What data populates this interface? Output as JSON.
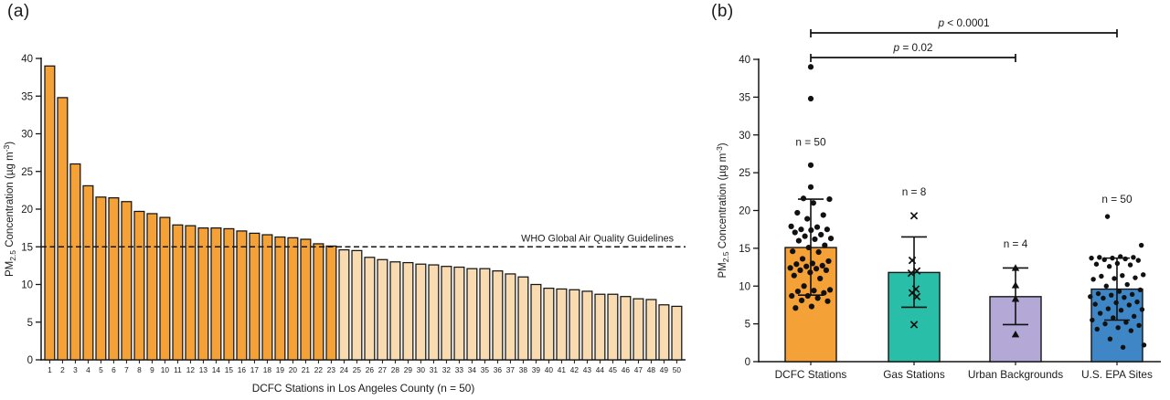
{
  "figure": {
    "panel_a_label": "(a)",
    "panel_b_label": "(b)"
  },
  "chart_data": [
    {
      "type": "bar",
      "panel": "a",
      "title": "",
      "xlabel": "DCFC Stations in Los Angeles County (n = 50)",
      "ylabel": "PM2.5 Concentration (µg m-3)",
      "ylabel_parts": {
        "pre": "PM",
        "sub": "2.5",
        "mid": " Concentration (µg m",
        "sup": "-3",
        "post": ")"
      },
      "ylim": [
        0,
        40
      ],
      "yticks": [
        0,
        5,
        10,
        15,
        20,
        25,
        30,
        35,
        40
      ],
      "grid": false,
      "categories": [
        "1",
        "2",
        "3",
        "4",
        "5",
        "6",
        "7",
        "8",
        "9",
        "10",
        "11",
        "12",
        "13",
        "14",
        "15",
        "16",
        "17",
        "18",
        "19",
        "20",
        "21",
        "22",
        "23",
        "24",
        "25",
        "26",
        "27",
        "28",
        "29",
        "30",
        "31",
        "32",
        "33",
        "34",
        "35",
        "36",
        "37",
        "38",
        "39",
        "40",
        "41",
        "42",
        "43",
        "44",
        "45",
        "46",
        "47",
        "48",
        "49",
        "50"
      ],
      "values": [
        39.0,
        34.8,
        26.0,
        23.1,
        21.6,
        21.5,
        21.0,
        19.7,
        19.4,
        18.9,
        17.9,
        17.8,
        17.5,
        17.5,
        17.4,
        17.1,
        16.8,
        16.6,
        16.3,
        16.2,
        16.0,
        15.4,
        15.1,
        14.6,
        14.5,
        13.6,
        13.3,
        13.0,
        12.9,
        12.7,
        12.6,
        12.4,
        12.3,
        12.1,
        12.1,
        11.8,
        11.4,
        11.0,
        10.0,
        9.5,
        9.4,
        9.3,
        9.1,
        8.7,
        8.7,
        8.4,
        8.1,
        8.0,
        7.3,
        7.1
      ],
      "reference_line": {
        "value": 15,
        "label": "WHO Global Air Quality Guidelines",
        "style": "dashed"
      },
      "threshold": 15,
      "colors": {
        "above": "#F4A137",
        "below": "#F8DBB1",
        "outline": "#151515",
        "axis": "#151515",
        "text": "#1a1a1a"
      }
    },
    {
      "type": "bar_scatter",
      "panel": "b",
      "title": "",
      "xlabel": "",
      "ylabel": "PM2.5 Concentration (µg m-3)",
      "ylabel_parts": {
        "pre": "PM",
        "sub": "2.5",
        "mid": " Concentration (µg m",
        "sup": "-3",
        "post": ")"
      },
      "ylim": [
        0,
        40
      ],
      "yticks": [
        0,
        5,
        10,
        15,
        20,
        25,
        30,
        35,
        40
      ],
      "grid": false,
      "categories": [
        "DCFC Stations",
        "Gas Stations",
        "Urban Backgrounds",
        "U.S. EPA Sites"
      ],
      "series": [
        {
          "name": "DCFC Stations",
          "n_label": "n = 50",
          "n_label_value_y": 28.6,
          "mean": 15.1,
          "err_low": 8.8,
          "err_high": 21.5,
          "color": "#F4A137",
          "marker": "circle",
          "points": [
            39.0,
            34.8,
            26.0,
            23.1,
            21.6,
            21.5,
            21.0,
            19.7,
            19.4,
            18.9,
            17.9,
            17.8,
            17.5,
            17.5,
            17.4,
            17.1,
            16.8,
            16.6,
            16.3,
            16.2,
            16.0,
            15.4,
            15.1,
            14.6,
            14.5,
            13.6,
            13.3,
            13.0,
            12.9,
            12.7,
            12.6,
            12.4,
            12.3,
            12.1,
            12.1,
            11.8,
            11.4,
            11.0,
            10.0,
            9.5,
            9.4,
            9.3,
            9.1,
            8.7,
            8.7,
            8.4,
            8.1,
            8.0,
            7.3,
            7.1
          ]
        },
        {
          "name": "Gas Stations",
          "n_label": "n = 8",
          "n_label_value_y": 22.0,
          "mean": 11.8,
          "err_low": 7.2,
          "err_high": 16.5,
          "color": "#29BEA7",
          "marker": "x",
          "points": [
            19.3,
            13.4,
            12.0,
            11.7,
            9.6,
            9.1,
            8.6,
            4.9
          ]
        },
        {
          "name": "Urban Backgrounds",
          "n_label": "n = 4",
          "n_label_value_y": 15.1,
          "mean": 8.6,
          "err_low": 4.9,
          "err_high": 12.4,
          "color": "#B3A8D6",
          "marker": "triangle",
          "points": [
            12.4,
            10.1,
            8.3,
            3.6
          ]
        },
        {
          "name": "U.S. EPA Sites",
          "n_label": "n = 50",
          "n_label_value_y": 21.0,
          "mean": 9.6,
          "err_low": 5.5,
          "err_high": 13.7,
          "color": "#3E86C5",
          "marker": "circle",
          "points": [
            19.2,
            15.4,
            13.9,
            13.8,
            13.8,
            13.7,
            13.7,
            13.6,
            13.5,
            13.4,
            13.0,
            12.9,
            12.8,
            12.6,
            11.5,
            11.4,
            11.3,
            11.1,
            11.0,
            10.9,
            10.2,
            10.0,
            9.5,
            9.3,
            9.0,
            8.9,
            8.8,
            8.6,
            8.5,
            8.4,
            7.9,
            7.8,
            7.6,
            7.5,
            7.0,
            6.9,
            6.8,
            6.4,
            6.0,
            5.8,
            5.5,
            5.2,
            5.0,
            4.8,
            4.5,
            4.3,
            4.1,
            3.0,
            2.2,
            1.9
          ]
        }
      ],
      "significance": [
        {
          "label": "p = 0.02",
          "from": 0,
          "to": 2
        },
        {
          "label": "p < 0.0001",
          "from": 0,
          "to": 3
        }
      ],
      "colors": {
        "axis": "#151515",
        "text": "#1a1a1a",
        "marker": "#111111"
      }
    }
  ]
}
